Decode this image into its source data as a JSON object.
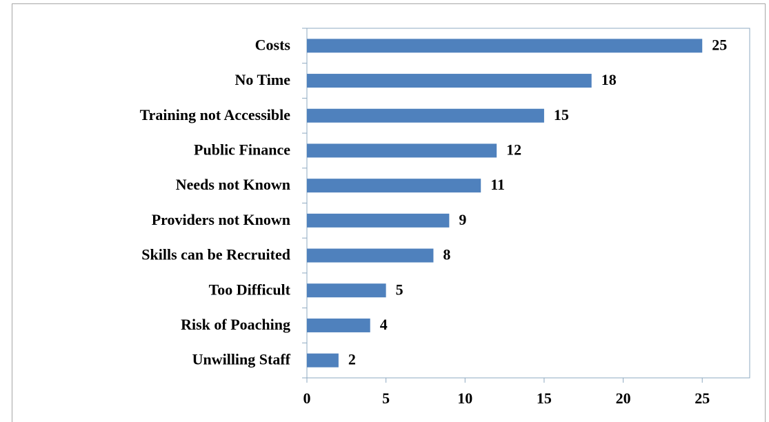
{
  "chart_data": {
    "type": "bar",
    "orientation": "horizontal",
    "categories": [
      "Costs",
      "No Time",
      "Training not Accessible",
      "Public Finance",
      "Needs not Known",
      "Providers not Known",
      "Skills can be Recruited",
      "Too Difficult",
      "Risk of Poaching",
      "Unwilling Staff"
    ],
    "values": [
      25,
      18,
      15,
      12,
      11,
      9,
      8,
      5,
      4,
      2
    ],
    "color": "#4f81bd",
    "xlim": [
      0,
      28
    ],
    "xticks": [
      0,
      5,
      10,
      15,
      20,
      25
    ],
    "grid": false
  }
}
